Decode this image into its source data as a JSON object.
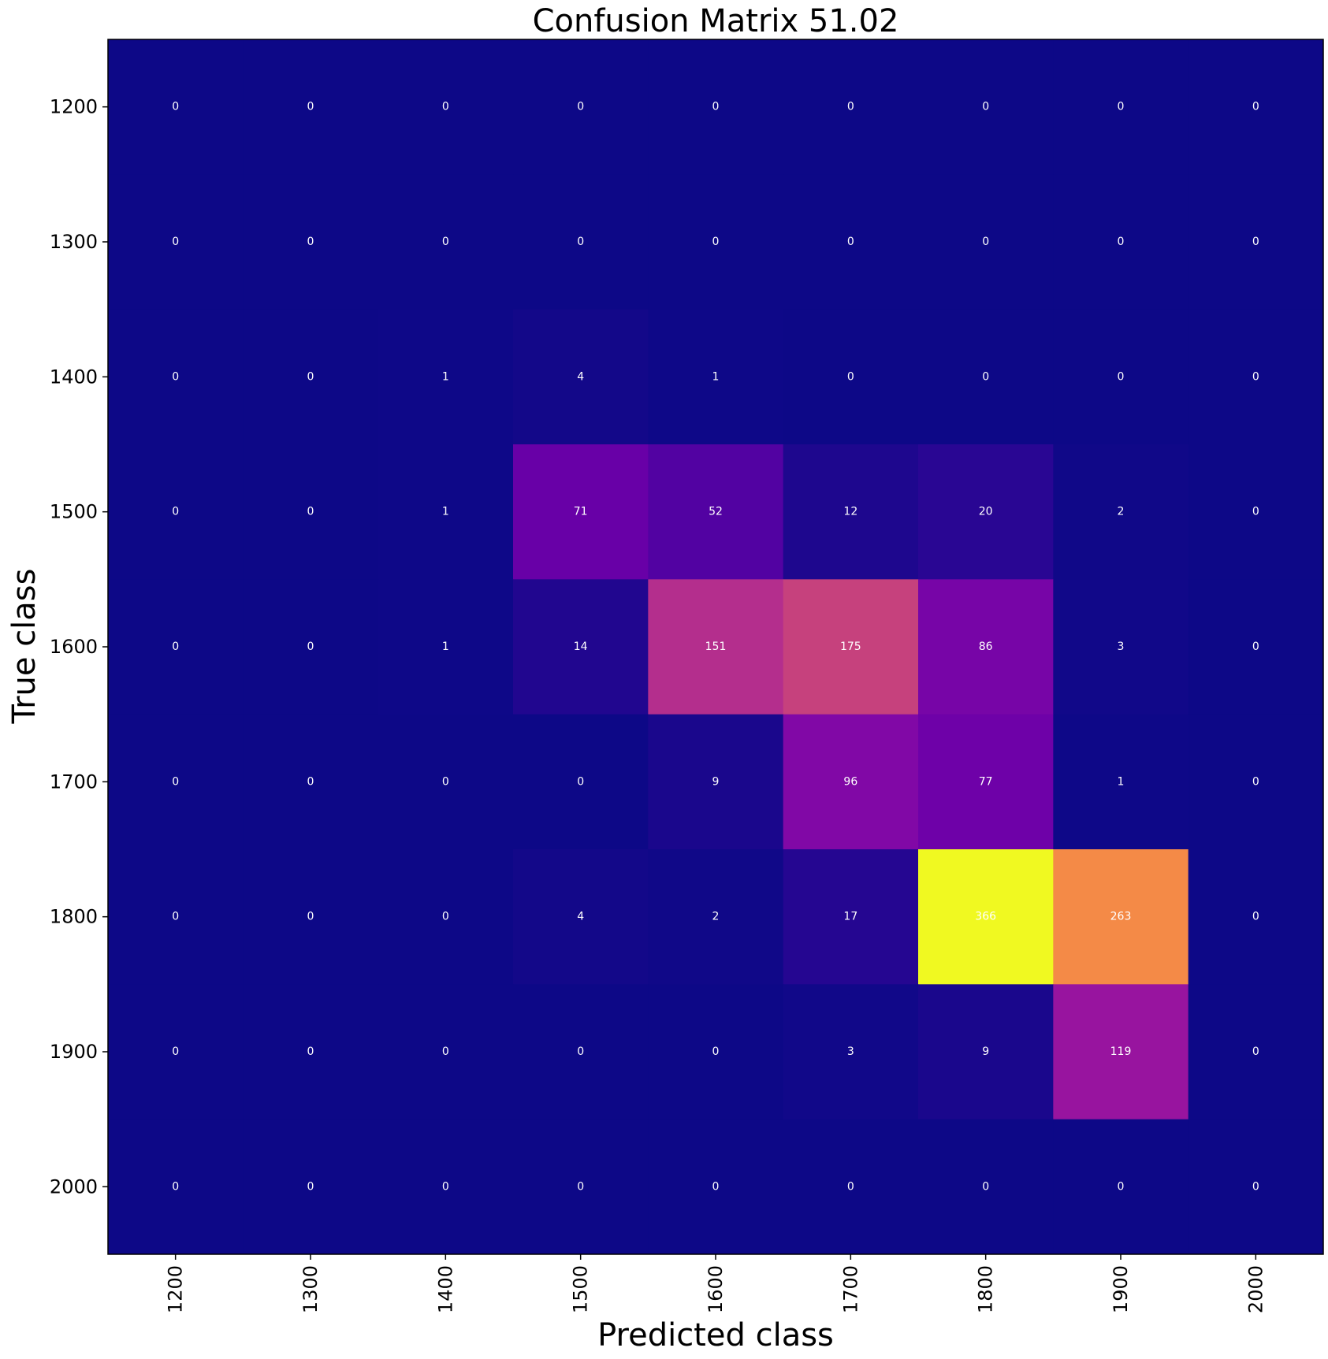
{
  "chart_data": {
    "type": "heatmap",
    "title": "Confusion Matrix 51.02",
    "xlabel": "Predicted class",
    "ylabel": "True class",
    "x_categories": [
      "1200",
      "1300",
      "1400",
      "1500",
      "1600",
      "1700",
      "1800",
      "1900",
      "2000"
    ],
    "y_categories": [
      "1200",
      "1300",
      "1400",
      "1500",
      "1600",
      "1700",
      "1800",
      "1900",
      "2000"
    ],
    "values": [
      [
        0,
        0,
        0,
        0,
        0,
        0,
        0,
        0,
        0
      ],
      [
        0,
        0,
        0,
        0,
        0,
        0,
        0,
        0,
        0
      ],
      [
        0,
        0,
        1,
        4,
        1,
        0,
        0,
        0,
        0
      ],
      [
        0,
        0,
        1,
        71,
        52,
        12,
        20,
        2,
        0
      ],
      [
        0,
        0,
        1,
        14,
        151,
        175,
        86,
        3,
        0
      ],
      [
        0,
        0,
        0,
        0,
        9,
        96,
        77,
        1,
        0
      ],
      [
        0,
        0,
        0,
        4,
        2,
        17,
        366,
        263,
        0
      ],
      [
        0,
        0,
        0,
        0,
        0,
        3,
        9,
        119,
        0
      ],
      [
        0,
        0,
        0,
        0,
        0,
        0,
        0,
        0,
        0
      ]
    ],
    "colormap": "plasma",
    "vmin": 0,
    "vmax": 366,
    "grid": false,
    "legend": "none"
  }
}
